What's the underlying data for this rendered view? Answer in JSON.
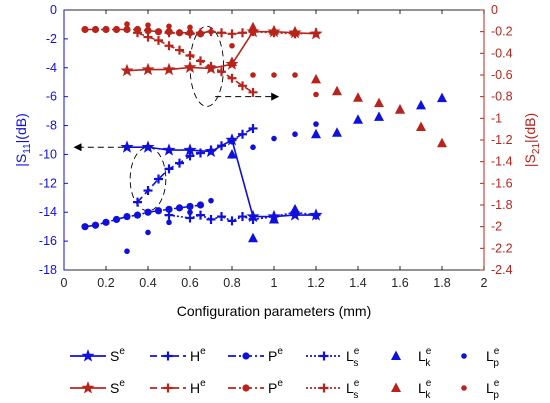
{
  "chart_data": {
    "type": "line",
    "xlabel": "Configuration parameters (mm)",
    "ylabel_left": "|S11|(dB)",
    "ylabel_right": "|S21|(dB)",
    "xlim": [
      0,
      2
    ],
    "ylim_left": [
      -18,
      0
    ],
    "ylim_right": [
      -2.4,
      0
    ],
    "x_ticks": [
      "0",
      "0.2",
      "0.4",
      "0.6",
      "0.8",
      "1",
      "1.2",
      "1.4",
      "1.6",
      "1.8",
      "2"
    ],
    "y_ticks_left": [
      "0",
      "-2",
      "-4",
      "-6",
      "-8",
      "-10",
      "-12",
      "-14",
      "-16",
      "-18"
    ],
    "y_ticks_right": [
      "0",
      "-0.2",
      "-0.4",
      "-0.6",
      "-0.8",
      "-1",
      "-1.2",
      "-1.4",
      "-1.6",
      "-1.8",
      "-2",
      "-2.2",
      "-2.4"
    ],
    "colors": {
      "s11": "#1010dd",
      "s21": "#b8241c"
    },
    "series": [
      {
        "name": "S^e",
        "axis": "left",
        "color_key": "s11",
        "line": "solid",
        "marker": "star",
        "x": [
          0.3,
          0.4,
          0.5,
          0.6,
          0.7,
          0.8,
          0.9,
          1.0,
          1.1,
          1.2
        ],
        "y": [
          -9.5,
          -9.5,
          -9.7,
          -9.7,
          -9.8,
          -9.0,
          -14.3,
          -14.3,
          -14.2,
          -14.2
        ]
      },
      {
        "name": "H^e",
        "axis": "left",
        "color_key": "s11",
        "line": "dashed",
        "marker": "plus",
        "x": [
          0.35,
          0.4,
          0.45,
          0.5,
          0.55,
          0.6,
          0.65,
          0.7,
          0.75,
          0.8,
          0.85,
          0.9
        ],
        "y": [
          -13.3,
          -12.5,
          -11.7,
          -11.0,
          -10.6,
          -10.1,
          -9.9,
          -9.7,
          -9.4,
          -9.0,
          -8.6,
          -8.2
        ]
      },
      {
        "name": "P^e",
        "axis": "left",
        "color_key": "s11",
        "line": "dashdot",
        "marker": "circle",
        "x": [
          0.1,
          0.15,
          0.2,
          0.25,
          0.3,
          0.35,
          0.4,
          0.45,
          0.5,
          0.55,
          0.6,
          0.65
        ],
        "y": [
          -15.0,
          -14.9,
          -14.7,
          -14.5,
          -14.3,
          -14.2,
          -14.0,
          -13.9,
          -13.8,
          -13.7,
          -13.6,
          -13.5
        ]
      },
      {
        "name": "L_s^e",
        "axis": "left",
        "color_key": "s11",
        "line": "dotted",
        "marker": "plus",
        "x": [
          0.5,
          0.6,
          0.65,
          0.7,
          0.75,
          0.8,
          0.85,
          0.9,
          1.0,
          1.1,
          1.2
        ],
        "y": [
          -14.2,
          -14.4,
          -14.2,
          -14.5,
          -14.3,
          -14.6,
          -14.3,
          -14.5,
          -14.3,
          -14.0,
          -14.2
        ]
      },
      {
        "name": "L_k^e",
        "axis": "left",
        "color_key": "s11",
        "line": "none",
        "marker": "triangle",
        "x": [
          0.8,
          0.9,
          1.0,
          1.1,
          1.2,
          1.3,
          1.4,
          1.5,
          1.6,
          1.7,
          1.8
        ],
        "y": [
          -10.0,
          -15.8,
          -14.5,
          -13.8,
          -8.6,
          -8.5,
          -7.6,
          -7.4,
          -6.9,
          -6.6,
          -6.1
        ]
      },
      {
        "name": "L_p^e",
        "axis": "left",
        "color_key": "s11",
        "line": "none",
        "marker": "dot",
        "x": [
          0.3,
          0.4,
          0.5,
          0.6,
          0.7,
          0.8,
          0.9,
          1.0,
          1.1,
          1.2
        ],
        "y": [
          -16.7,
          -15.4,
          -14.7,
          -14.0,
          -13.2,
          -10.1,
          -9.5,
          -8.9,
          -8.6,
          -7.9
        ]
      },
      {
        "name": "S^e",
        "axis": "right",
        "color_key": "s21",
        "line": "solid",
        "marker": "star",
        "x": [
          0.3,
          0.4,
          0.5,
          0.6,
          0.7,
          0.8,
          0.9,
          1.0,
          1.1,
          1.2
        ],
        "y": [
          -0.56,
          -0.55,
          -0.55,
          -0.53,
          -0.54,
          -0.5,
          -0.2,
          -0.2,
          -0.21,
          -0.22
        ]
      },
      {
        "name": "H^e",
        "axis": "right",
        "color_key": "s21",
        "line": "dashed",
        "marker": "plus",
        "x": [
          0.35,
          0.4,
          0.45,
          0.5,
          0.55,
          0.6,
          0.65,
          0.7,
          0.75,
          0.8,
          0.85,
          0.9
        ],
        "y": [
          -0.21,
          -0.25,
          -0.28,
          -0.33,
          -0.37,
          -0.42,
          -0.47,
          -0.52,
          -0.57,
          -0.63,
          -0.7,
          -0.76
        ]
      },
      {
        "name": "P^e",
        "axis": "right",
        "color_key": "s21",
        "line": "dashdot",
        "marker": "circle",
        "x": [
          0.1,
          0.15,
          0.2,
          0.25,
          0.3,
          0.35,
          0.4,
          0.45,
          0.5,
          0.55,
          0.6,
          0.65
        ],
        "y": [
          -0.18,
          -0.18,
          -0.18,
          -0.18,
          -0.18,
          -0.18,
          -0.19,
          -0.2,
          -0.2,
          -0.21,
          -0.21,
          -0.22
        ]
      },
      {
        "name": "L_s^e",
        "axis": "right",
        "color_key": "s21",
        "line": "dotted",
        "marker": "plus",
        "x": [
          0.5,
          0.6,
          0.65,
          0.7,
          0.75,
          0.8,
          0.85,
          0.9,
          1.0,
          1.1,
          1.2
        ],
        "y": [
          -0.21,
          -0.22,
          -0.21,
          -0.2,
          -0.21,
          -0.22,
          -0.21,
          -0.2,
          -0.21,
          -0.22,
          -0.21
        ]
      },
      {
        "name": "L_k^e",
        "axis": "right",
        "color_key": "s21",
        "line": "none",
        "marker": "triangle",
        "x": [
          0.8,
          0.9,
          1.0,
          1.1,
          1.2,
          1.3,
          1.4,
          1.5,
          1.6,
          1.7,
          1.8
        ],
        "y": [
          -0.48,
          -0.16,
          -0.19,
          -0.2,
          -0.64,
          -0.75,
          -0.81,
          -0.86,
          -0.92,
          -1.08,
          -1.23
        ]
      },
      {
        "name": "L_p^e",
        "axis": "right",
        "color_key": "s21",
        "line": "none",
        "marker": "dot",
        "x": [
          0.3,
          0.4,
          0.5,
          0.6,
          0.7,
          0.8,
          0.9,
          1.0,
          1.1,
          1.2
        ],
        "y": [
          -0.13,
          -0.14,
          -0.15,
          -0.16,
          -0.2,
          -0.33,
          -0.6,
          -0.6,
          -0.6,
          -0.78
        ]
      }
    ],
    "legend": {
      "placement": "bottom",
      "rows": [
        [
          {
            "base": "S",
            "sup": "e",
            "sub": "",
            "line": "solid",
            "marker": "star",
            "color_key": "s11"
          },
          {
            "base": "H",
            "sup": "e",
            "sub": "",
            "line": "dashed",
            "marker": "plus",
            "color_key": "s11"
          },
          {
            "base": "P",
            "sup": "e",
            "sub": "",
            "line": "dashdot",
            "marker": "circle",
            "color_key": "s11"
          },
          {
            "base": "L",
            "sup": "e",
            "sub": "s",
            "line": "dotted",
            "marker": "plus",
            "color_key": "s11"
          },
          {
            "base": "L",
            "sup": "e",
            "sub": "k",
            "line": "none",
            "marker": "triangle",
            "color_key": "s11"
          },
          {
            "base": "L",
            "sup": "e",
            "sub": "p",
            "line": "none",
            "marker": "dot",
            "color_key": "s11"
          }
        ],
        [
          {
            "base": "S",
            "sup": "e",
            "sub": "",
            "line": "solid",
            "marker": "star",
            "color_key": "s21"
          },
          {
            "base": "H",
            "sup": "e",
            "sub": "",
            "line": "dashed",
            "marker": "plus",
            "color_key": "s21"
          },
          {
            "base": "P",
            "sup": "e",
            "sub": "",
            "line": "dashdot",
            "marker": "circle",
            "color_key": "s21"
          },
          {
            "base": "L",
            "sup": "e",
            "sub": "s",
            "line": "dotted",
            "marker": "plus",
            "color_key": "s21"
          },
          {
            "base": "L",
            "sup": "e",
            "sub": "k",
            "line": "none",
            "marker": "triangle",
            "color_key": "s21"
          },
          {
            "base": "L",
            "sup": "e",
            "sub": "p",
            "line": "none",
            "marker": "dot",
            "color_key": "s21"
          }
        ]
      ]
    },
    "annotations": [
      {
        "type": "ellipse",
        "axis": "right",
        "color_key": "s21",
        "cx": 0.68,
        "cy": -0.52,
        "rx": 0.08,
        "ry": 0.37
      },
      {
        "type": "arrow",
        "axis": "right",
        "color_key": "s21",
        "from": [
          0.72,
          -0.8
        ],
        "to": [
          1.02,
          -0.8
        ]
      },
      {
        "type": "ellipse",
        "axis": "left",
        "color_key": "s11",
        "cx": 0.4,
        "cy": -11.7,
        "rx": 0.085,
        "ry": 2.2
      },
      {
        "type": "arrow",
        "axis": "left",
        "color_key": "s11",
        "from": [
          0.38,
          -9.5
        ],
        "to": [
          0.05,
          -9.5
        ]
      }
    ]
  }
}
